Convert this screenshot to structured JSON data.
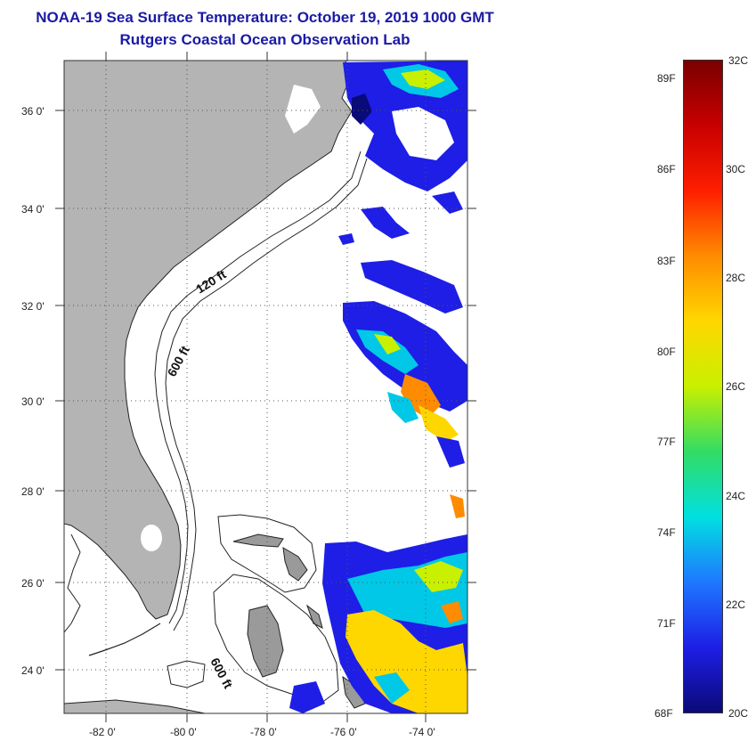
{
  "title": "NOAA-19 Sea Surface Temperature:  October 19, 2019 1000 GMT",
  "subtitle": "Rutgers Coastal Ocean Observation Lab",
  "map": {
    "lat_labels": [
      "36 0'",
      "34 0'",
      "32 0'",
      "30 0'",
      "28 0'",
      "26 0'",
      "24 0'"
    ],
    "lon_labels": [
      "-82 0'",
      "-80 0'",
      "-78 0'",
      "-76 0'",
      "-74 0'"
    ],
    "contour_labels": [
      "120 ft",
      "600 ft",
      "600 ft"
    ],
    "land_color": "#b4b4b4"
  },
  "colorbar": {
    "fahrenheit": [
      "89F",
      "86F",
      "83F",
      "80F",
      "77F",
      "74F",
      "71F",
      "68F"
    ],
    "celsius": [
      "32C",
      "30C",
      "28C",
      "26C",
      "24C",
      "22C",
      "20C"
    ],
    "colors": [
      "#7a0000",
      "#c80000",
      "#ff1e00",
      "#ff8c00",
      "#ffd700",
      "#c8f000",
      "#32dc64",
      "#00e0e0",
      "#1e78ff",
      "#1e1ee6",
      "#0a0a78"
    ]
  }
}
